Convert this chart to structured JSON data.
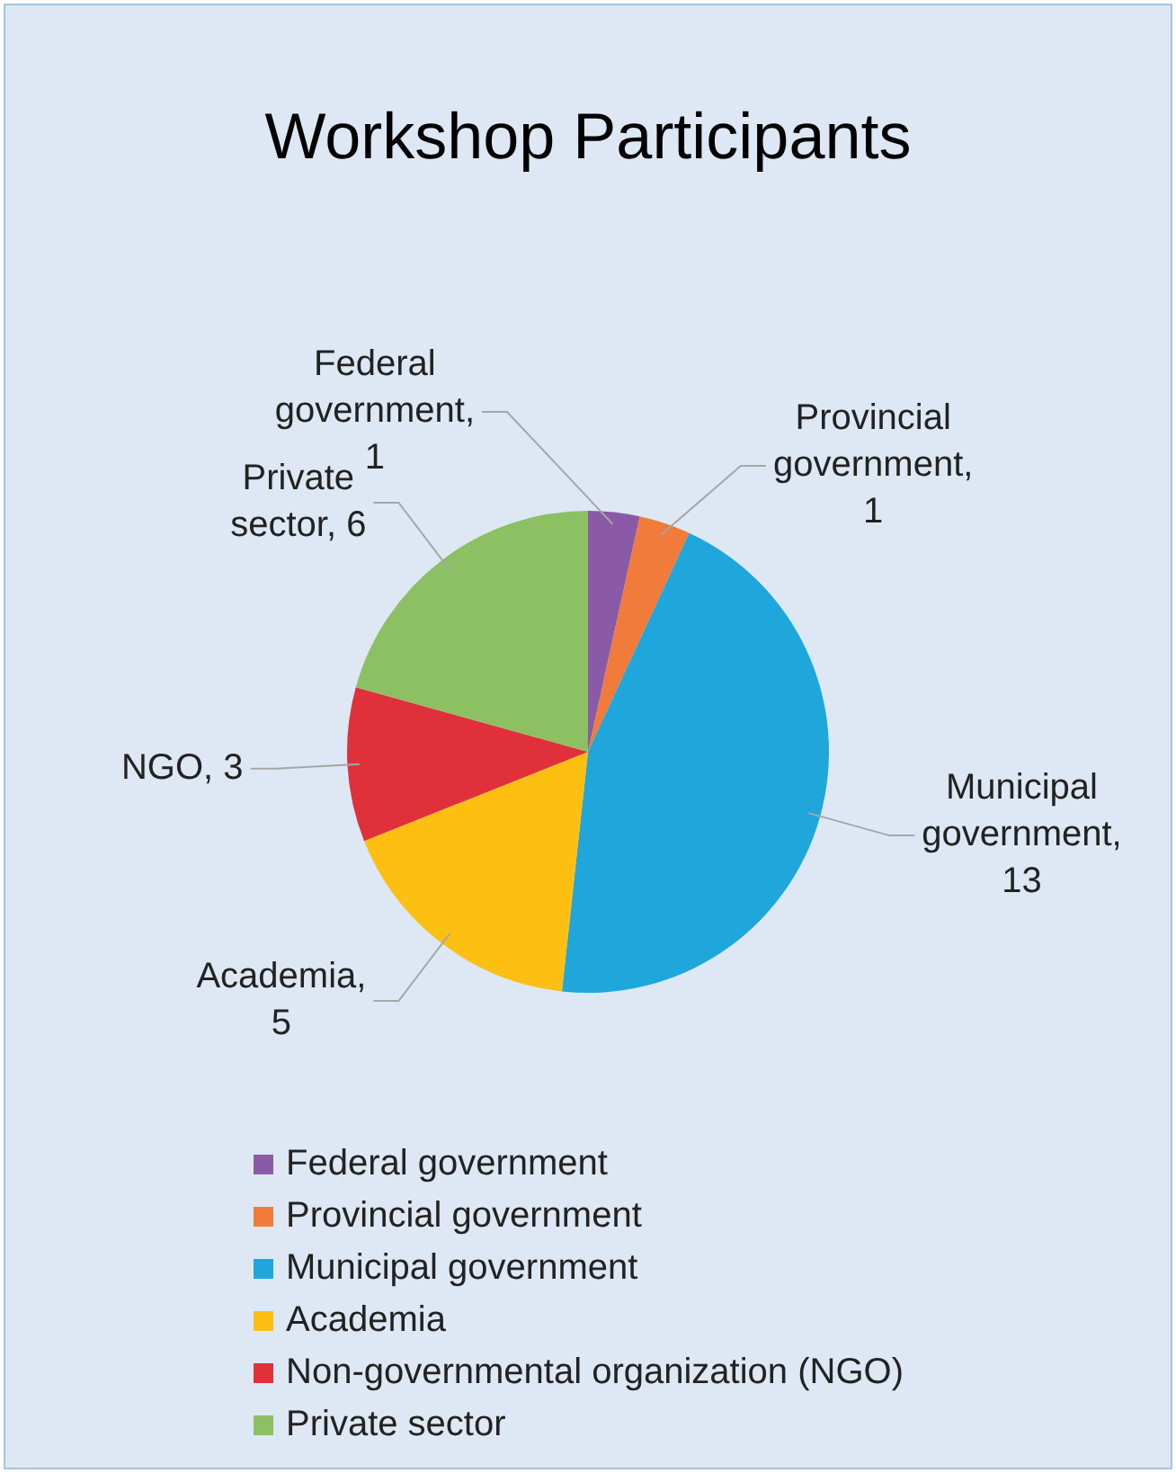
{
  "chart_data": {
    "type": "pie",
    "title": "Workshop Participants",
    "categories": [
      "Federal government",
      "Provincial government",
      "Municipal government",
      "Academia",
      "Non-governmental organization (NGO)",
      "Private sector"
    ],
    "values": [
      1,
      1,
      13,
      5,
      3,
      6
    ],
    "colors": [
      "#8a5aa6",
      "#f07b3a",
      "#1fa6db",
      "#fcbf12",
      "#e0303a",
      "#8cc063"
    ],
    "value_labels": [
      "Federal government, 1",
      "Provincial government, 1",
      "Municipal government, 13",
      "Academia, 5",
      "NGO, 3",
      "Private sector, 6"
    ],
    "legend": "bottom"
  }
}
